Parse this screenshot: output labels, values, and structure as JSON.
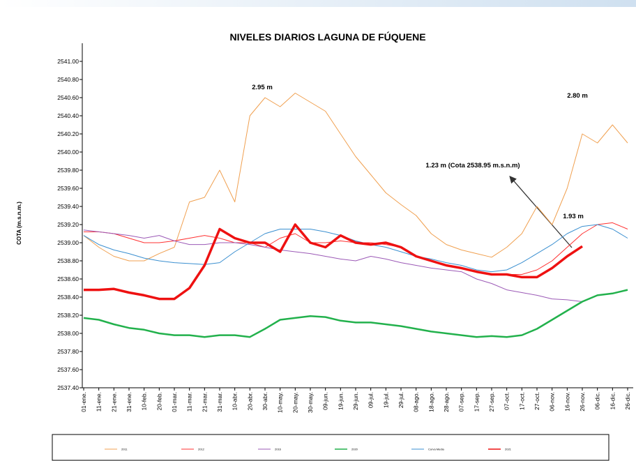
{
  "chart_data": {
    "type": "line",
    "title": "NIVELES DIARIOS LAGUNA DE FÚQUENE",
    "y_label": "COTA (m.s.n.m.)",
    "categories": [
      "01-ene.",
      "11-ene.",
      "21-ene.",
      "31-ene.",
      "10-feb.",
      "20-feb.",
      "01-mar.",
      "11-mar.",
      "21-mar.",
      "31-mar.",
      "10-abr.",
      "20-abr.",
      "30-abr.",
      "10-may.",
      "20-may.",
      "30-may.",
      "09-jun.",
      "19-jun.",
      "29-jun.",
      "09-jul.",
      "19-jul.",
      "29-jul.",
      "08-ago.",
      "18-ago.",
      "28-ago.",
      "07-sep.",
      "17-sep.",
      "27-sep.",
      "07-oct.",
      "17-oct.",
      "27-oct.",
      "06-nov.",
      "16-nov.",
      "26-nov.",
      "06-dic.",
      "16-dic.",
      "26-dic."
    ],
    "ylim": [
      2537.4,
      2541.2
    ],
    "yticks": [
      {
        "value": 2537.4,
        "label": "2537.40"
      },
      {
        "value": 2537.6,
        "label": "2537.60"
      },
      {
        "value": 2537.8,
        "label": "2537.80"
      },
      {
        "value": 2538.0,
        "label": "2538.00"
      },
      {
        "value": 2538.2,
        "label": "2538.20"
      },
      {
        "value": 2538.4,
        "label": "2538.40"
      },
      {
        "value": 2538.6,
        "label": "2538.60"
      },
      {
        "value": 2538.8,
        "label": "2538.80"
      },
      {
        "value": 2539.0,
        "label": "2539.00"
      },
      {
        "value": 2539.2,
        "label": "2539.20"
      },
      {
        "value": 2539.4,
        "label": "2539.40"
      },
      {
        "value": 2539.6,
        "label": "2539.60"
      },
      {
        "value": 2539.8,
        "label": "2539.80"
      },
      {
        "value": 2540.0,
        "label": "2540.00"
      },
      {
        "value": 2540.2,
        "label": "2540.20"
      },
      {
        "value": 2540.4,
        "label": "2540.40"
      },
      {
        "value": 2540.6,
        "label": "2540.60"
      },
      {
        "value": 2540.8,
        "label": "2540.80"
      },
      {
        "value": 2541.0,
        "label": "2541.00"
      }
    ],
    "series": [
      {
        "name": "2011",
        "color": "#f0a050",
        "width": 1,
        "values": [
          2539.08,
          2538.95,
          2538.85,
          2538.8,
          2538.8,
          2538.88,
          2538.95,
          2539.45,
          2539.5,
          2539.8,
          2539.45,
          2540.4,
          2540.6,
          2540.5,
          2540.65,
          2540.55,
          2540.45,
          2540.2,
          2539.95,
          2539.75,
          2539.55,
          2539.42,
          2539.3,
          2539.1,
          2538.98,
          2538.92,
          2538.88,
          2538.84,
          2538.95,
          2539.1,
          2539.4,
          2539.2,
          2539.6,
          2540.2,
          2540.1,
          2540.3,
          2540.1
        ]
      },
      {
        "name": "2012",
        "color": "#ff3030",
        "width": 1,
        "values": [
          2539.12,
          2539.12,
          2539.1,
          2539.05,
          2539.0,
          2539.0,
          2539.02,
          2539.05,
          2539.08,
          2539.05,
          2539.0,
          2539.0,
          2538.95,
          2539.05,
          2539.1,
          2539.0,
          2539.0,
          2539.02,
          2539.0,
          2539.0,
          2538.98,
          2538.95,
          2538.85,
          2538.8,
          2538.75,
          2538.72,
          2538.68,
          2538.65,
          2538.65,
          2538.65,
          2538.7,
          2538.8,
          2538.95,
          2539.1,
          2539.2,
          2539.22,
          2539.15
        ]
      },
      {
        "name": "2016",
        "color": "#9b59b6",
        "width": 1,
        "values": [
          2539.14,
          2539.12,
          2539.1,
          2539.08,
          2539.05,
          2539.08,
          2539.02,
          2538.98,
          2538.98,
          2539.0,
          2539.0,
          2538.98,
          2538.95,
          2538.92,
          2538.9,
          2538.88,
          2538.85,
          2538.82,
          2538.8,
          2538.85,
          2538.82,
          2538.78,
          2538.75,
          2538.72,
          2538.7,
          2538.68,
          2538.6,
          2538.55,
          2538.48,
          2538.45,
          2538.42,
          2538.38,
          2538.37,
          2538.35,
          null,
          null,
          null
        ]
      },
      {
        "name": "2020",
        "color": "#22b14c",
        "width": 2.5,
        "values": [
          2538.17,
          2538.15,
          2538.1,
          2538.06,
          2538.04,
          2538.0,
          2537.98,
          2537.98,
          2537.96,
          2537.98,
          2537.98,
          2537.96,
          2538.05,
          2538.15,
          2538.17,
          2538.19,
          2538.18,
          2538.14,
          2538.12,
          2538.12,
          2538.1,
          2538.08,
          2538.05,
          2538.02,
          2538.0,
          2537.98,
          2537.96,
          2537.97,
          2537.96,
          2537.98,
          2538.05,
          2538.15,
          2538.25,
          2538.35,
          2538.42,
          2538.44,
          2538.48
        ]
      },
      {
        "name": "Curva Media",
        "color": "#3a8fd0",
        "width": 1,
        "values": [
          2539.08,
          2538.98,
          2538.92,
          2538.88,
          2538.83,
          2538.8,
          2538.78,
          2538.77,
          2538.76,
          2538.78,
          2538.9,
          2539.0,
          2539.1,
          2539.15,
          2539.15,
          2539.15,
          2539.12,
          2539.08,
          2539.02,
          2538.98,
          2538.95,
          2538.9,
          2538.85,
          2538.82,
          2538.78,
          2538.75,
          2538.7,
          2538.68,
          2538.7,
          2538.78,
          2538.88,
          2538.98,
          2539.1,
          2539.18,
          2539.2,
          2539.15,
          2539.05
        ]
      },
      {
        "name": "2021",
        "color": "#ee1111",
        "width": 3.5,
        "values": [
          2538.48,
          2538.48,
          2538.49,
          2538.45,
          2538.42,
          2538.38,
          2538.38,
          2538.5,
          2538.75,
          2539.15,
          2539.05,
          2539.0,
          2539.0,
          2538.9,
          2539.2,
          2539.0,
          2538.95,
          2539.08,
          2539.0,
          2538.98,
          2539.0,
          2538.95,
          2538.85,
          2538.8,
          2538.75,
          2538.72,
          2538.68,
          2538.65,
          2538.65,
          2538.62,
          2538.62,
          2538.72,
          2538.85,
          2538.96,
          null,
          null,
          null
        ]
      }
    ],
    "annotations": [
      "2.95 m",
      "2.80 m",
      "1.23 m (Cota 2538.95 m.s.n.m)",
      "1.93 m"
    ]
  }
}
